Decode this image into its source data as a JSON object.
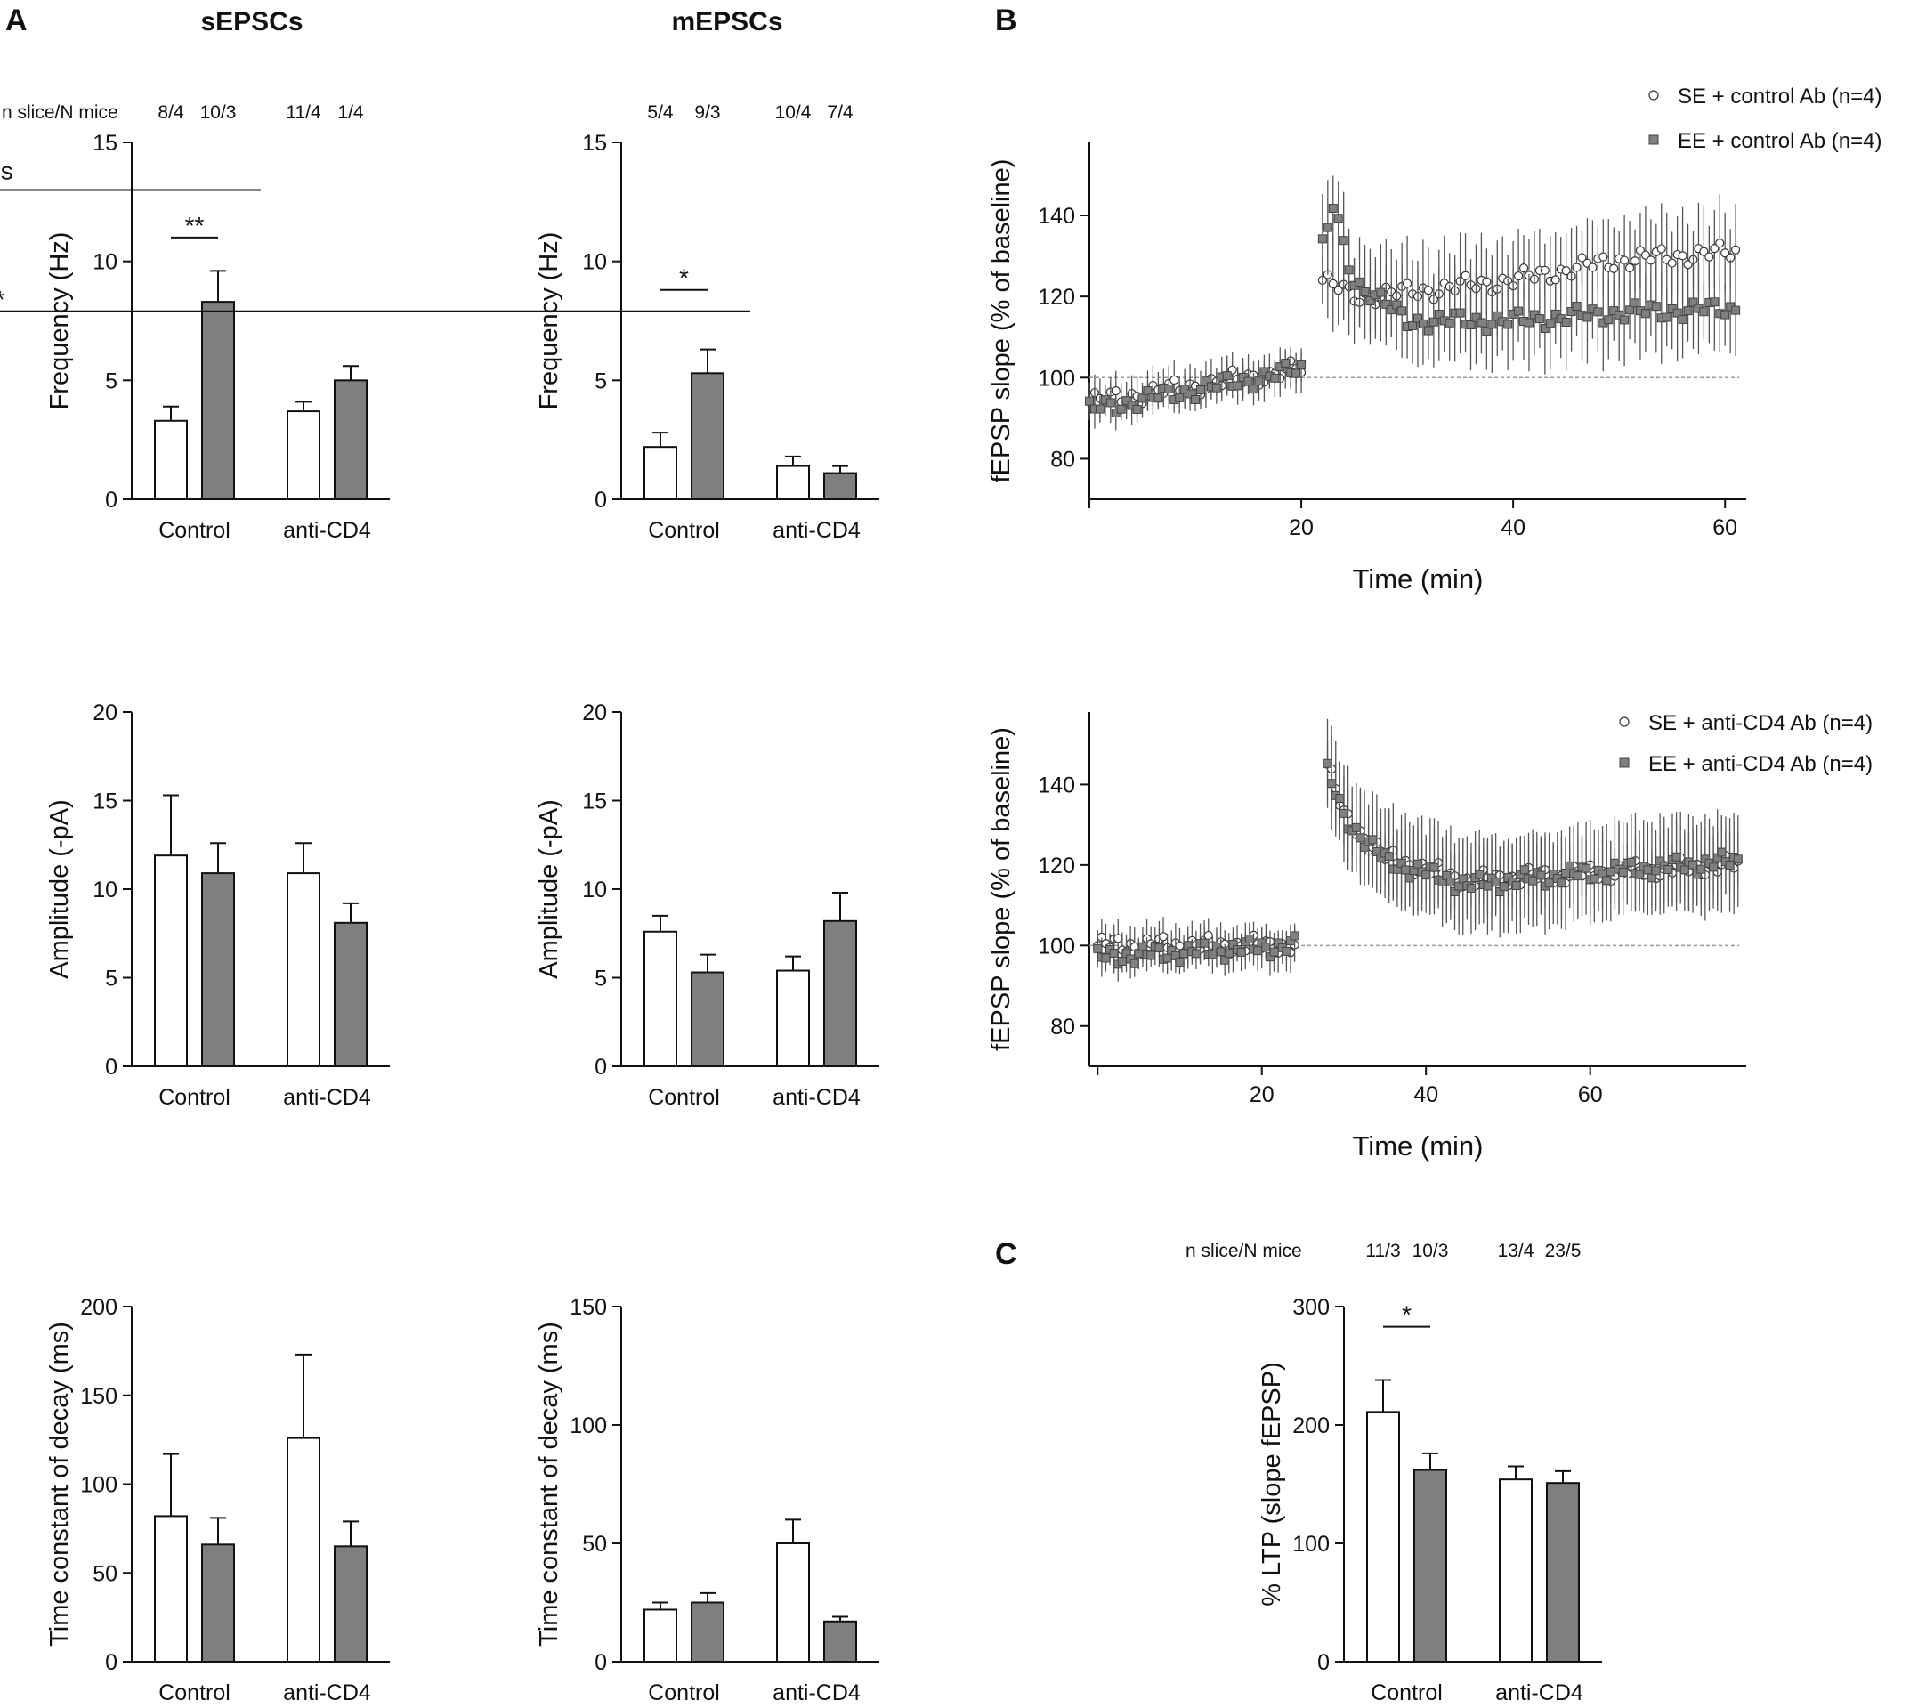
{
  "panel_letters": {
    "a": "A",
    "b": "B",
    "c": "C"
  },
  "colors": {
    "white_bar": "#ffffff",
    "gray_bar": "#7f7f7f",
    "axis": "#111111",
    "baseline": "#9a9a9a",
    "se_marker": "#ffffff",
    "ee_marker": "#808080"
  },
  "chart_data": [
    {
      "id": "sepsc_freq",
      "type": "bar",
      "title": "sEPSCs",
      "ylabel": "Frequency (Hz)",
      "ylim": [
        0,
        15
      ],
      "yticks": [
        0,
        5,
        10,
        15
      ],
      "categories": [
        "Control",
        "anti-CD4"
      ],
      "series": [
        {
          "name": "white",
          "values": [
            3.3,
            3.7
          ],
          "errors": [
            0.6,
            0.4
          ]
        },
        {
          "name": "gray",
          "values": [
            8.3,
            5.0
          ],
          "errors": [
            1.3,
            0.6
          ]
        }
      ],
      "n_label": "n slice/N mice",
      "n_values": [
        "8/4",
        "10/3",
        "11/4",
        "1/4"
      ],
      "significance": [
        {
          "label": "**",
          "from": 0,
          "to": 1,
          "y": 11.0
        },
        {
          "label": "ns",
          "from": 1.5,
          "to": 3.5,
          "y": 13.0
        }
      ]
    },
    {
      "id": "sepsc_amp",
      "type": "bar",
      "ylabel": "Amplitude (-pA)",
      "ylim": [
        0,
        20
      ],
      "yticks": [
        0,
        5,
        10,
        15,
        20
      ],
      "categories": [
        "Control",
        "anti-CD4"
      ],
      "series": [
        {
          "name": "white",
          "values": [
            11.9,
            10.9
          ],
          "errors": [
            3.4,
            1.7
          ]
        },
        {
          "name": "gray",
          "values": [
            10.9,
            8.1
          ],
          "errors": [
            1.7,
            1.1
          ]
        }
      ]
    },
    {
      "id": "sepsc_decay",
      "type": "bar",
      "ylabel": "Time constant of decay (ms)",
      "ylim": [
        0,
        200
      ],
      "yticks": [
        0,
        50,
        100,
        150,
        200
      ],
      "categories": [
        "Control",
        "anti-CD4"
      ],
      "series": [
        {
          "name": "white",
          "values": [
            82,
            126
          ],
          "errors": [
            35,
            47
          ]
        },
        {
          "name": "gray",
          "values": [
            66,
            65
          ],
          "errors": [
            15,
            14
          ]
        }
      ]
    },
    {
      "id": "mepsc_freq",
      "type": "bar",
      "title": "mEPSCs",
      "ylabel": "Frequency (Hz)",
      "ylim": [
        0,
        15
      ],
      "yticks": [
        0,
        5,
        10,
        15
      ],
      "categories": [
        "Control",
        "anti-CD4"
      ],
      "series": [
        {
          "name": "white",
          "values": [
            2.2,
            1.4
          ],
          "errors": [
            0.6,
            0.4
          ]
        },
        {
          "name": "gray",
          "values": [
            5.3,
            1.1
          ],
          "errors": [
            1.0,
            0.3
          ]
        }
      ],
      "n_values": [
        "5/4",
        "9/3",
        "10/4",
        "7/4"
      ],
      "significance": [
        {
          "label": "*",
          "from": 0,
          "to": 1,
          "y": 8.8
        },
        {
          "label": "*",
          "from": 1.5,
          "to": 3.5,
          "y": 7.9
        }
      ]
    },
    {
      "id": "mepsc_amp",
      "type": "bar",
      "ylabel": "Amplitude (-pA)",
      "ylim": [
        0,
        20
      ],
      "yticks": [
        0,
        5,
        10,
        15,
        20
      ],
      "categories": [
        "Control",
        "anti-CD4"
      ],
      "series": [
        {
          "name": "white",
          "values": [
            7.6,
            5.4
          ],
          "errors": [
            0.9,
            0.8
          ]
        },
        {
          "name": "gray",
          "values": [
            5.3,
            8.2
          ],
          "errors": [
            1.0,
            1.6
          ]
        }
      ]
    },
    {
      "id": "mepsc_decay",
      "type": "bar",
      "ylabel": "Time constant of decay (ms)",
      "ylim": [
        0,
        150
      ],
      "yticks": [
        0,
        50,
        100,
        150
      ],
      "categories": [
        "Control",
        "anti-CD4"
      ],
      "series": [
        {
          "name": "white",
          "values": [
            22,
            50
          ],
          "errors": [
            3,
            10
          ]
        },
        {
          "name": "gray",
          "values": [
            25,
            17
          ],
          "errors": [
            4,
            2
          ]
        }
      ]
    },
    {
      "id": "ltp_control",
      "type": "scatter",
      "xlabel": "Time (min)",
      "ylabel": "fEPSP slope (% of baseline)",
      "xlim": [
        0,
        62
      ],
      "ylim": [
        70,
        158
      ],
      "xticks": [
        20,
        40,
        60
      ],
      "yticks": [
        80,
        100,
        120,
        140
      ],
      "baseline": 100,
      "series": [
        {
          "name": "SE + control Ab (n=4)",
          "marker": "open-circle",
          "segments": [
            {
              "t": [
                0,
                20
              ],
              "v": [
                94,
                102
              ]
            },
            {
              "t": [
                22,
                25,
                30,
                40,
                50,
                61
              ],
              "v": [
                124,
                120,
                121,
                124,
                129,
                131
              ]
            }
          ]
        },
        {
          "name": "EE + control Ab (n=4)",
          "marker": "filled-square",
          "segments": [
            {
              "t": [
                0,
                20
              ],
              "v": [
                92,
                102
              ]
            },
            {
              "t": [
                22,
                23,
                25,
                30,
                40,
                50,
                61
              ],
              "v": [
                132,
                142,
                124,
                114,
                114,
                116,
                117
              ]
            }
          ]
        }
      ]
    },
    {
      "id": "ltp_antiCD4",
      "type": "scatter",
      "xlabel": "Time (min)",
      "ylabel": "fEPSP slope (% of baseline)",
      "xlim": [
        -1,
        79
      ],
      "ylim": [
        70,
        158
      ],
      "xticks": [
        20,
        40,
        60
      ],
      "yticks": [
        80,
        100,
        120,
        140
      ],
      "baseline": 100,
      "series": [
        {
          "name": "SE + anti-CD4 Ab (n=4)",
          "marker": "open-circle",
          "segments": [
            {
              "t": [
                0,
                24
              ],
              "v": [
                100,
                100
              ]
            },
            {
              "t": [
                28,
                30,
                35,
                45,
                60,
                78
              ],
              "v": [
                145,
                132,
                122,
                116,
                118,
                120
              ]
            }
          ]
        },
        {
          "name": "EE + anti-CD4 Ab (n=4)",
          "marker": "filled-square",
          "segments": [
            {
              "t": [
                0,
                24
              ],
              "v": [
                97,
                100
              ]
            },
            {
              "t": [
                28,
                30,
                35,
                45,
                60,
                78
              ],
              "v": [
                143,
                132,
                121,
                115,
                118,
                121
              ]
            }
          ]
        }
      ]
    },
    {
      "id": "ltp_percent",
      "type": "bar",
      "ylabel": "% LTP (slope fEPSP)",
      "ylim": [
        0,
        300
      ],
      "yticks": [
        0,
        100,
        200,
        300
      ],
      "categories": [
        "Control",
        "anti-CD4"
      ],
      "series": [
        {
          "name": "white",
          "values": [
            211,
            154
          ],
          "errors": [
            27,
            11
          ]
        },
        {
          "name": "gray",
          "values": [
            162,
            151
          ],
          "errors": [
            14,
            10
          ]
        }
      ],
      "n_label": "n slice/N mice",
      "n_values": [
        "11/3",
        "10/3",
        "13/4",
        "23/5"
      ],
      "significance": [
        {
          "label": "*",
          "from": 0,
          "to": 1,
          "y": 283
        }
      ]
    }
  ]
}
